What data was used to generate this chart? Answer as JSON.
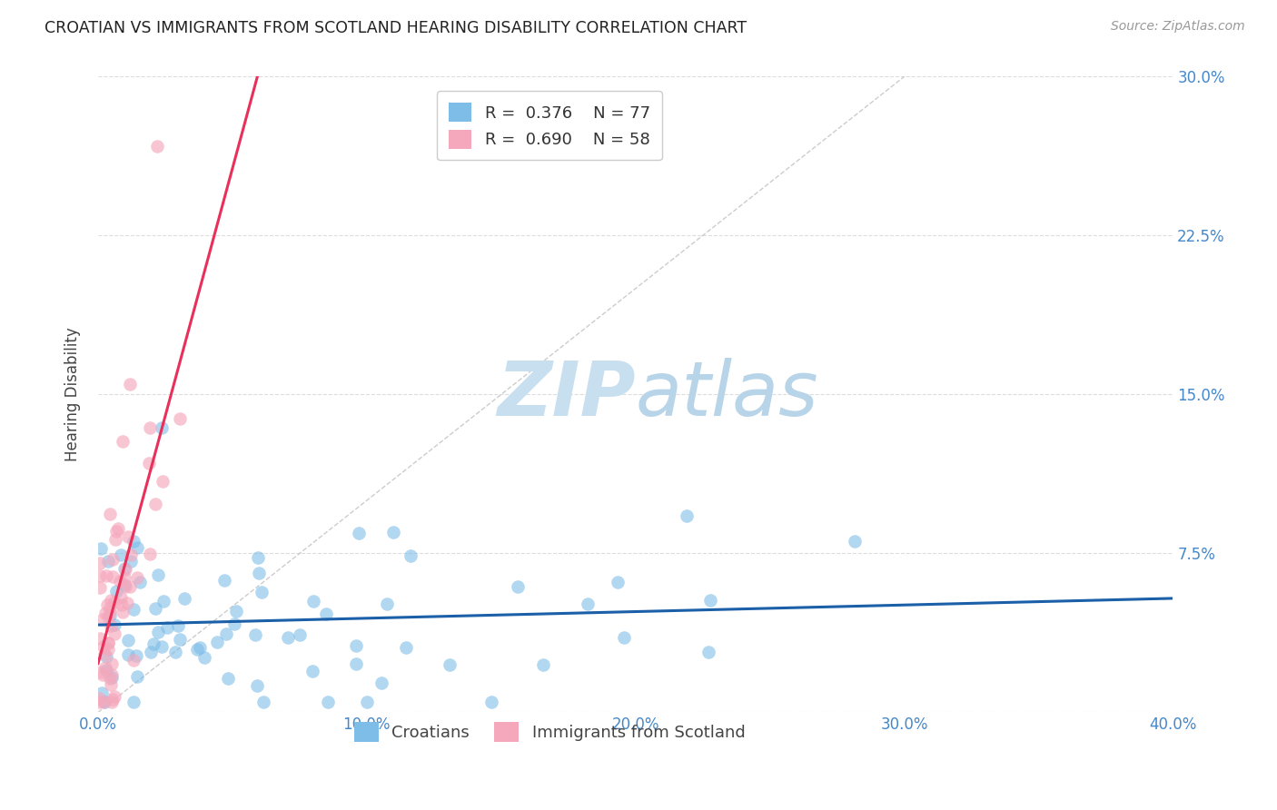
{
  "title": "CROATIAN VS IMMIGRANTS FROM SCOTLAND HEARING DISABILITY CORRELATION CHART",
  "source": "Source: ZipAtlas.com",
  "ylabel": "Hearing Disability",
  "xlim": [
    0.0,
    0.4
  ],
  "ylim": [
    0.0,
    0.3
  ],
  "xticks": [
    0.0,
    0.1,
    0.2,
    0.3,
    0.4
  ],
  "xtick_labels": [
    "0.0%",
    "10.0%",
    "20.0%",
    "30.0%",
    "40.0%"
  ],
  "yticks": [
    0.0,
    0.075,
    0.15,
    0.225,
    0.3
  ],
  "ytick_labels_right": [
    "",
    "7.5%",
    "15.0%",
    "22.5%",
    "30.0%"
  ],
  "legend_croatians": "Croatians",
  "legend_scotland": "Immigrants from Scotland",
  "R_croatians": 0.376,
  "N_croatians": 77,
  "R_scotland": 0.69,
  "N_scotland": 58,
  "blue_color": "#7dbde8",
  "pink_color": "#f5a8bc",
  "blue_line_color": "#1a5fa8",
  "pink_line_color": "#e8305a",
  "watermark_ZIP_color": "#c8dff0",
  "watermark_atlas_color": "#b8d4e8",
  "background_color": "#ffffff",
  "grid_color": "#dddddd",
  "title_color": "#222222",
  "tick_color": "#4488cc",
  "seed_croatians": 42,
  "seed_scotland": 7
}
